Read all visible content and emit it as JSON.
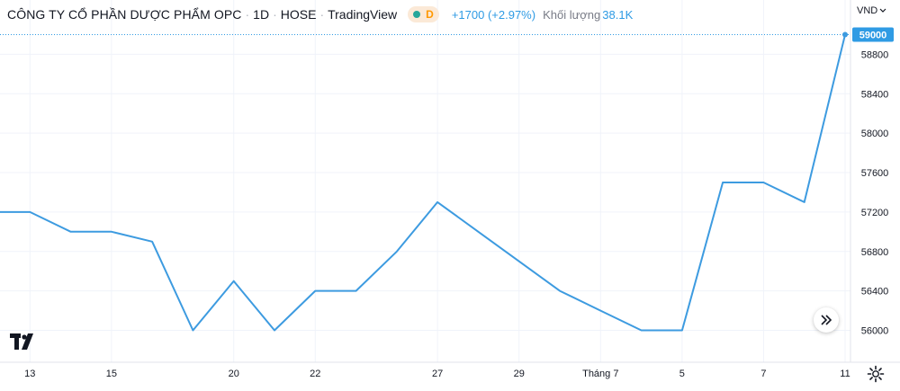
{
  "header": {
    "title": "CÔNG TY CỔ PHẦN DƯỢC PHẨM OPC",
    "interval": "1D",
    "exchange": "HOSE",
    "source": "TradingView",
    "status_letter": "D",
    "change": "+1700 (+2.97%)",
    "volume_label": "Khối lượng",
    "volume_value": "38.1K"
  },
  "price_axis": {
    "currency": "VND",
    "last_price_label": "59000"
  },
  "colors": {
    "line": "#3d9be0",
    "last_price_bg": "#2f9be4",
    "grid": "#f0f3fa",
    "axis_text": "#131722"
  },
  "icons": {
    "scroll": "double-chevron-right-icon",
    "logo": "tradingview-logo-icon",
    "settings": "gear-icon",
    "currency_dropdown": "chevron-down-icon"
  },
  "chart_data": {
    "type": "line",
    "x": [
      "Jun 12",
      "Jun 13",
      "Jun 14",
      "Jun 15",
      "Jun 16",
      "Jun 17",
      "Jun 20",
      "Jun 21",
      "Jun 22",
      "Jun 23",
      "Jun 24",
      "Jun 27",
      "Jun 28",
      "Jun 29",
      "Jun 30",
      "Jul 1",
      "Jul 4",
      "Jul 5",
      "Jul 6",
      "Jul 7",
      "Jul 8",
      "Jul 11"
    ],
    "series": [
      {
        "values": [
          57200,
          57200,
          57000,
          57000,
          56900,
          56000,
          56500,
          56000,
          56400,
          56400,
          56800,
          57300,
          57000,
          56700,
          56400,
          56200,
          56000,
          56000,
          57500,
          57500,
          57300,
          59000
        ]
      }
    ],
    "x_tick_labels": [
      "13",
      "15",
      "20",
      "22",
      "27",
      "29",
      "Tháng 7",
      "5",
      "7",
      "11"
    ],
    "y_tick_labels": [
      "56000",
      "56400",
      "56800",
      "57200",
      "57600",
      "58000",
      "58400",
      "58800"
    ],
    "ylim": [
      55900,
      59100
    ],
    "y_axis_side": "right",
    "grid": true
  }
}
